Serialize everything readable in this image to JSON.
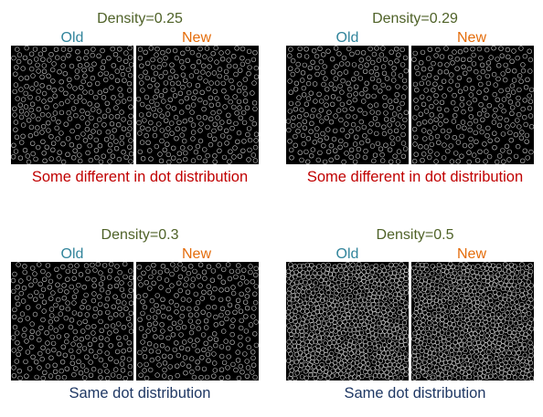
{
  "colors": {
    "density": "#4f6228",
    "old": "#31849b",
    "new": "#e46c0a",
    "caption_different": "#c00000",
    "caption_same": "#1f3864",
    "image_bg": "#000000",
    "dot": "#c8c8c8"
  },
  "panels": [
    {
      "density": "Density=0.25",
      "old_label": "Old",
      "new_label": "New",
      "caption": "Some different in dot distribution",
      "caption_kind": "different",
      "density_value": 0.25
    },
    {
      "density": "Density=0.29",
      "old_label": "Old",
      "new_label": "New",
      "caption": "Some different in dot distribution",
      "caption_kind": "different",
      "density_value": 0.29
    },
    {
      "density": "Density=0.3",
      "old_label": "Old",
      "new_label": "New",
      "caption": "Same dot distribution",
      "caption_kind": "same",
      "density_value": 0.3
    },
    {
      "density": "Density=0.5",
      "old_label": "Old",
      "new_label": "New",
      "caption": "Same dot distribution",
      "caption_kind": "same",
      "density_value": 0.5
    }
  ]
}
